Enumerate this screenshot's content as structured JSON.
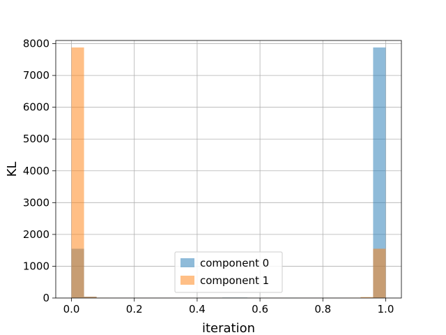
{
  "chart_data": {
    "type": "bar",
    "subtype": "overlapping-histogram",
    "xlabel": "iteration",
    "ylabel": "KL",
    "xlim": [
      -0.05,
      1.05
    ],
    "ylim": [
      0,
      8100
    ],
    "xticks": [
      0.0,
      0.2,
      0.4,
      0.6,
      0.8,
      1.0
    ],
    "xtick_labels": [
      "0.0",
      "0.2",
      "0.4",
      "0.6",
      "0.8",
      "1.0"
    ],
    "yticks": [
      0,
      1000,
      2000,
      3000,
      4000,
      5000,
      6000,
      7000,
      8000
    ],
    "ytick_labels": [
      "0",
      "1000",
      "2000",
      "3000",
      "4000",
      "5000",
      "6000",
      "7000",
      "8000"
    ],
    "grid": true,
    "legend_position": "bottom-center",
    "bin_edges": [
      0.0,
      0.04,
      0.08,
      0.12,
      0.16,
      0.2,
      0.24,
      0.28,
      0.32,
      0.36,
      0.4,
      0.44,
      0.48,
      0.52,
      0.56,
      0.6,
      0.64,
      0.68,
      0.72,
      0.76,
      0.8,
      0.84,
      0.88,
      0.92,
      0.96,
      1.0
    ],
    "series": [
      {
        "name": "component 0",
        "color": "#1f77b4",
        "alpha": 0.5,
        "values": [
          1550,
          40,
          10,
          5,
          5,
          5,
          5,
          5,
          5,
          5,
          5,
          5,
          15,
          15,
          5,
          5,
          5,
          10,
          5,
          5,
          5,
          5,
          5,
          10,
          7880
        ]
      },
      {
        "name": "component 1",
        "color": "#ff7f0e",
        "alpha": 0.5,
        "values": [
          7880,
          40,
          10,
          5,
          5,
          5,
          5,
          5,
          5,
          5,
          5,
          5,
          10,
          10,
          5,
          5,
          5,
          5,
          5,
          5,
          5,
          5,
          10,
          30,
          1550
        ]
      }
    ]
  }
}
